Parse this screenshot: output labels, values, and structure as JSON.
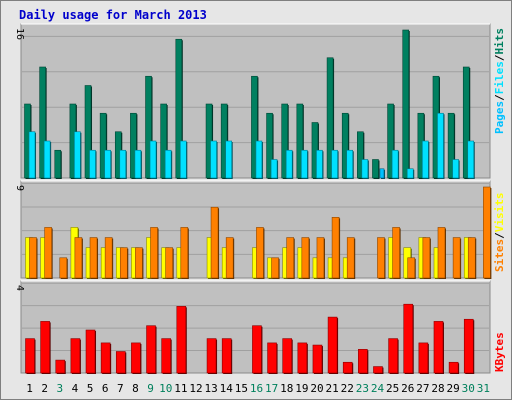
{
  "title": "Daily usage for March 2013",
  "colors": {
    "background": "#e6e6e6",
    "panel": "#c0c0c0",
    "grid": "#a0a0a0",
    "hits": "#008060",
    "files": "#00e0ff",
    "pages": "#00c0ff",
    "visits": "#ffff00",
    "sites": "#ff8000",
    "kbytes": "#ff0000",
    "label_weekday": "#000000",
    "label_weekend": "#00805c"
  },
  "legend": {
    "top": [
      "Pages",
      "Files",
      "Hits"
    ],
    "middle": [
      "Sites",
      "Visits"
    ],
    "bottom": [
      "KBytes"
    ],
    "sep": "/"
  },
  "chart_data": [
    {
      "type": "bar",
      "panel": "top",
      "ymax_label": "16",
      "ylim": [
        0,
        16
      ],
      "categories": [
        "1",
        "2",
        "3",
        "4",
        "5",
        "6",
        "7",
        "8",
        "9",
        "10",
        "11",
        "12",
        "13",
        "14",
        "15",
        "16",
        "17",
        "18",
        "19",
        "20",
        "21",
        "22",
        "23",
        "24",
        "25",
        "26",
        "27",
        "28",
        "29",
        "30",
        "31"
      ],
      "weekend": [
        3,
        9,
        10,
        16,
        17,
        23,
        24,
        30,
        31
      ],
      "series": [
        {
          "name": "Hits",
          "values": [
            8,
            12,
            3,
            8,
            10,
            7,
            5,
            7,
            11,
            8,
            15,
            0,
            8,
            8,
            0,
            11,
            7,
            8,
            8,
            6,
            13,
            7,
            5,
            2,
            8,
            16,
            7,
            11,
            7,
            12,
            0
          ]
        },
        {
          "name": "Files",
          "values": [
            5,
            4,
            0,
            5,
            3,
            3,
            3,
            3,
            4,
            3,
            4,
            0,
            4,
            4,
            0,
            4,
            2,
            3,
            3,
            3,
            3,
            3,
            2,
            0,
            3,
            1,
            4,
            7,
            2,
            4,
            0
          ]
        },
        {
          "name": "Pages",
          "values": [
            0,
            0,
            0,
            0,
            0,
            0,
            0,
            0,
            0,
            0,
            0,
            0,
            0,
            0,
            0,
            0,
            0,
            0,
            0,
            0,
            0,
            0,
            0,
            1,
            0,
            0,
            0,
            0,
            0,
            0,
            0
          ]
        }
      ]
    },
    {
      "type": "bar",
      "panel": "middle",
      "ymax_label": "9",
      "ylim": [
        0,
        9
      ],
      "series": [
        {
          "name": "Visits",
          "values": [
            4,
            4,
            0,
            5,
            3,
            3,
            3,
            3,
            4,
            3,
            3,
            0,
            4,
            3,
            0,
            3,
            2,
            3,
            3,
            2,
            2,
            2,
            0,
            0,
            4,
            3,
            4,
            3,
            0,
            4,
            0
          ]
        },
        {
          "name": "Sites",
          "values": [
            4,
            5,
            2,
            4,
            4,
            4,
            3,
            3,
            5,
            3,
            5,
            0,
            7,
            4,
            0,
            5,
            2,
            4,
            4,
            4,
            6,
            4,
            0,
            4,
            5,
            2,
            4,
            5,
            4,
            4,
            9
          ]
        }
      ]
    },
    {
      "type": "bar",
      "panel": "bottom",
      "ymax_label": "4",
      "ylim": [
        0,
        4
      ],
      "series": [
        {
          "name": "KBytes",
          "values": [
            1.6,
            2.4,
            0.6,
            1.6,
            2.0,
            1.4,
            1.0,
            1.4,
            2.2,
            1.6,
            3.1,
            0,
            1.6,
            1.6,
            0,
            2.2,
            1.4,
            1.6,
            1.4,
            1.3,
            2.6,
            0.5,
            1.1,
            0.3,
            1.6,
            3.2,
            1.4,
            2.4,
            0.5,
            2.5,
            0
          ]
        }
      ]
    }
  ]
}
